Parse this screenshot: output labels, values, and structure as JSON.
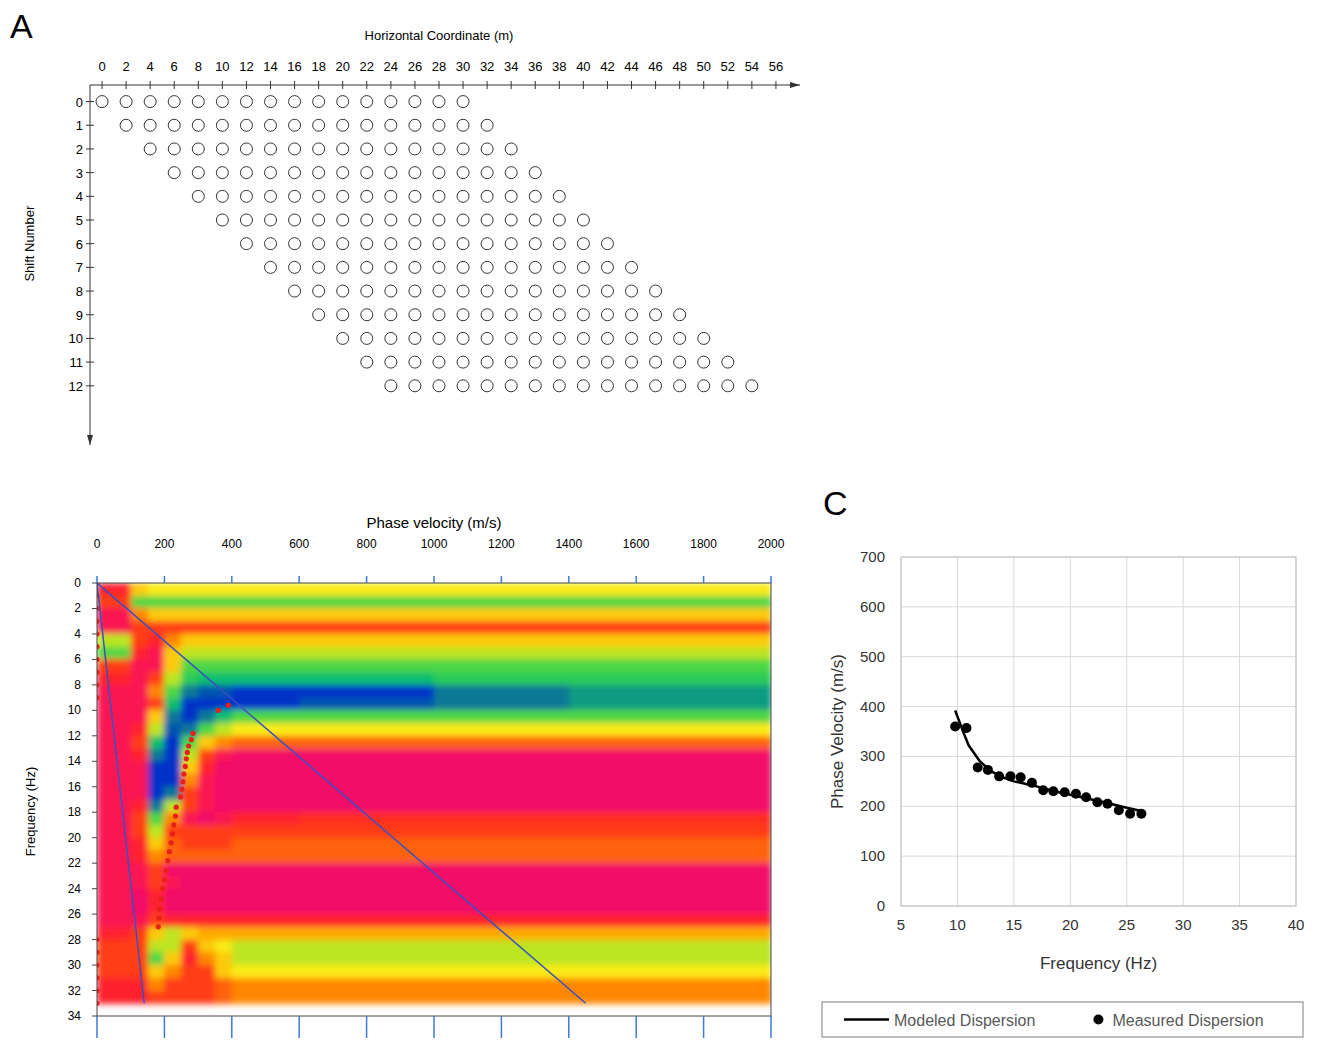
{
  "chart_data": [
    {
      "type": "scatter",
      "panel_label": "A",
      "xlabel": "Horizontal Coordinate (m)",
      "ylabel": "Shift Number",
      "xlim": [
        -1,
        58
      ],
      "ylim": [
        14.5,
        -0.7
      ],
      "xticks": [
        0,
        2,
        4,
        6,
        8,
        10,
        12,
        14,
        16,
        18,
        20,
        22,
        24,
        26,
        28,
        30,
        32,
        34,
        36,
        38,
        40,
        42,
        44,
        46,
        48,
        50,
        52,
        54,
        56
      ],
      "yticks": [
        0,
        1,
        2,
        3,
        4,
        5,
        6,
        7,
        8,
        9,
        10,
        11,
        12
      ],
      "marker": "circle",
      "rows": [
        {
          "shift": 0,
          "x": [
            0,
            2,
            4,
            6,
            8,
            10,
            12,
            14,
            16,
            18,
            20,
            22,
            24,
            26,
            28,
            30
          ]
        },
        {
          "shift": 1,
          "x": [
            2,
            4,
            6,
            8,
            10,
            12,
            14,
            16,
            18,
            20,
            22,
            24,
            26,
            28,
            30,
            32
          ]
        },
        {
          "shift": 2,
          "x": [
            4,
            6,
            8,
            10,
            12,
            14,
            16,
            18,
            20,
            22,
            24,
            26,
            28,
            30,
            32,
            34
          ]
        },
        {
          "shift": 3,
          "x": [
            6,
            8,
            10,
            12,
            14,
            16,
            18,
            20,
            22,
            24,
            26,
            28,
            30,
            32,
            34,
            36
          ]
        },
        {
          "shift": 4,
          "x": [
            8,
            10,
            12,
            14,
            16,
            18,
            20,
            22,
            24,
            26,
            28,
            30,
            32,
            34,
            36,
            38
          ]
        },
        {
          "shift": 5,
          "x": [
            10,
            12,
            14,
            16,
            18,
            20,
            22,
            24,
            26,
            28,
            30,
            32,
            34,
            36,
            38,
            40
          ]
        },
        {
          "shift": 6,
          "x": [
            12,
            14,
            16,
            18,
            20,
            22,
            24,
            26,
            28,
            30,
            32,
            34,
            36,
            38,
            40,
            42
          ]
        },
        {
          "shift": 7,
          "x": [
            14,
            16,
            18,
            20,
            22,
            24,
            26,
            28,
            30,
            32,
            34,
            36,
            38,
            40,
            42,
            44
          ]
        },
        {
          "shift": 8,
          "x": [
            16,
            18,
            20,
            22,
            24,
            26,
            28,
            30,
            32,
            34,
            36,
            38,
            40,
            42,
            44,
            46
          ]
        },
        {
          "shift": 9,
          "x": [
            18,
            20,
            22,
            24,
            26,
            28,
            30,
            32,
            34,
            36,
            38,
            40,
            42,
            44,
            46,
            48
          ]
        },
        {
          "shift": 10,
          "x": [
            20,
            22,
            24,
            26,
            28,
            30,
            32,
            34,
            36,
            38,
            40,
            42,
            44,
            46,
            48,
            50
          ]
        },
        {
          "shift": 11,
          "x": [
            22,
            24,
            26,
            28,
            30,
            32,
            34,
            36,
            38,
            40,
            42,
            44,
            46,
            48,
            50,
            52
          ]
        },
        {
          "shift": 12,
          "x": [
            24,
            26,
            28,
            30,
            32,
            34,
            36,
            38,
            40,
            42,
            44,
            46,
            48,
            50,
            52,
            54
          ]
        }
      ]
    },
    {
      "type": "heatmap",
      "xlabel": "Phase velocity (m/s)",
      "ylabel": "Frequency (Hz)",
      "xlim": [
        0,
        2000
      ],
      "ylim": [
        34,
        0
      ],
      "xticks": [
        0,
        200,
        400,
        600,
        800,
        1000,
        1200,
        1400,
        1600,
        1800,
        2000
      ],
      "yticks": [
        0,
        2,
        4,
        6,
        8,
        10,
        12,
        14,
        16,
        18,
        20,
        22,
        24,
        26,
        28,
        30,
        32,
        34
      ],
      "x_edges": [
        0,
        100,
        150,
        200,
        250,
        300,
        350,
        400,
        600,
        1000,
        1400,
        2000
      ],
      "y_edges": [
        0,
        1,
        2,
        3,
        4,
        5,
        6,
        7,
        8,
        9,
        10,
        11,
        12,
        13,
        14,
        15,
        16,
        17,
        18,
        19,
        20,
        21,
        22,
        23,
        24,
        25,
        26,
        27,
        28,
        29,
        30,
        31,
        32,
        33
      ],
      "color_range": [
        0,
        1
      ],
      "cells": [
        [
          0.2,
          0.5,
          0.55,
          0.55,
          0.55,
          0.55,
          0.55,
          0.55,
          0.55,
          0.55,
          0.55
        ],
        [
          0.3,
          0.7,
          0.7,
          0.7,
          0.7,
          0.7,
          0.7,
          0.7,
          0.7,
          0.7,
          0.7
        ],
        [
          0.1,
          0.4,
          0.5,
          0.5,
          0.5,
          0.5,
          0.5,
          0.5,
          0.5,
          0.5,
          0.5
        ],
        [
          0.1,
          0.3,
          0.3,
          0.3,
          0.3,
          0.3,
          0.3,
          0.3,
          0.3,
          0.3,
          0.3
        ],
        [
          0.6,
          0.3,
          0.2,
          0.4,
          0.5,
          0.5,
          0.5,
          0.5,
          0.5,
          0.5,
          0.5
        ],
        [
          0.7,
          0.2,
          0.1,
          0.5,
          0.6,
          0.6,
          0.6,
          0.6,
          0.6,
          0.6,
          0.6
        ],
        [
          0.3,
          0.1,
          0.1,
          0.5,
          0.7,
          0.7,
          0.7,
          0.7,
          0.7,
          0.7,
          0.7
        ],
        [
          0.2,
          0.1,
          0.3,
          0.6,
          0.75,
          0.8,
          0.8,
          0.8,
          0.8,
          0.75,
          0.75
        ],
        [
          0.1,
          0.1,
          0.4,
          0.7,
          0.9,
          0.95,
          0.95,
          1.0,
          1.0,
          0.9,
          0.85
        ],
        [
          0.1,
          0.1,
          0.3,
          0.8,
          1.0,
          1.0,
          1.0,
          1.0,
          0.95,
          0.9,
          0.85
        ],
        [
          0.1,
          0.1,
          0.5,
          0.9,
          1.0,
          0.9,
          0.8,
          0.7,
          0.7,
          0.7,
          0.7
        ],
        [
          0.1,
          0.2,
          0.6,
          0.95,
          0.9,
          0.7,
          0.6,
          0.55,
          0.55,
          0.55,
          0.55
        ],
        [
          0.1,
          0.3,
          0.8,
          1.0,
          0.7,
          0.5,
          0.4,
          0.35,
          0.35,
          0.35,
          0.35
        ],
        [
          0.1,
          0.2,
          0.9,
          1.0,
          0.6,
          0.3,
          0.1,
          0.05,
          0.05,
          0.05,
          0.05
        ],
        [
          0.1,
          0.1,
          1.0,
          1.0,
          0.5,
          0.2,
          0.05,
          0.05,
          0.05,
          0.05,
          0.05
        ],
        [
          0.1,
          0.1,
          1.0,
          1.0,
          0.4,
          0.1,
          0.05,
          0.05,
          0.05,
          0.05,
          0.05
        ],
        [
          0.1,
          0.1,
          1.0,
          0.9,
          0.3,
          0.1,
          0.05,
          0.05,
          0.05,
          0.05,
          0.05
        ],
        [
          0.1,
          0.2,
          0.9,
          0.6,
          0.3,
          0.1,
          0.05,
          0.05,
          0.05,
          0.05,
          0.05
        ],
        [
          0.1,
          0.3,
          0.7,
          0.4,
          0.1,
          0.05,
          0.1,
          0.2,
          0.25,
          0.25,
          0.25
        ],
        [
          0.1,
          0.3,
          0.6,
          0.3,
          0.3,
          0.3,
          0.3,
          0.3,
          0.3,
          0.3,
          0.3
        ],
        [
          0.1,
          0.2,
          0.5,
          0.35,
          0.3,
          0.3,
          0.3,
          0.35,
          0.35,
          0.35,
          0.35
        ],
        [
          0.1,
          0.2,
          0.4,
          0.35,
          0.35,
          0.35,
          0.35,
          0.35,
          0.35,
          0.35,
          0.35
        ],
        [
          0.1,
          0.1,
          0.3,
          0.05,
          0.05,
          0.05,
          0.05,
          0.05,
          0.05,
          0.05,
          0.05
        ],
        [
          0.1,
          0.1,
          0.3,
          0.1,
          0.05,
          0.05,
          0.05,
          0.05,
          0.05,
          0.05,
          0.05
        ],
        [
          0.1,
          0.05,
          0.2,
          0.05,
          0.05,
          0.05,
          0.05,
          0.05,
          0.05,
          0.05,
          0.05
        ],
        [
          0.1,
          0.05,
          0.2,
          0.05,
          0.05,
          0.05,
          0.05,
          0.05,
          0.05,
          0.05,
          0.05
        ],
        [
          0.1,
          0.1,
          0.3,
          0.2,
          0.2,
          0.2,
          0.2,
          0.2,
          0.2,
          0.2,
          0.2
        ],
        [
          0.2,
          0.3,
          0.5,
          0.6,
          0.5,
          0.45,
          0.45,
          0.45,
          0.45,
          0.45,
          0.45
        ],
        [
          0.3,
          0.3,
          0.6,
          0.6,
          0.3,
          0.5,
          0.55,
          0.6,
          0.6,
          0.6,
          0.6
        ],
        [
          0.3,
          0.3,
          0.7,
          0.5,
          0.2,
          0.4,
          0.5,
          0.6,
          0.6,
          0.6,
          0.6
        ],
        [
          0.3,
          0.3,
          0.5,
          0.4,
          0.3,
          0.3,
          0.5,
          0.55,
          0.55,
          0.55,
          0.55
        ],
        [
          0.2,
          0.2,
          0.4,
          0.3,
          0.3,
          0.3,
          0.35,
          0.4,
          0.4,
          0.4,
          0.4
        ],
        [
          0.2,
          0.2,
          0.3,
          0.3,
          0.3,
          0.3,
          0.35,
          0.4,
          0.4,
          0.4,
          0.4
        ]
      ],
      "series": [
        {
          "type": "scatter",
          "color": "#e8201a",
          "marker": "circle",
          "x": [
            390,
            360,
            285,
            280,
            272,
            268,
            265,
            262,
            258,
            255,
            252,
            248,
            235,
            233,
            228,
            224,
            220,
            215,
            210,
            205,
            200,
            195,
            190,
            186,
            184,
            182
          ],
          "values": [
            9.6,
            10.0,
            11.8,
            12.3,
            12.8,
            13.3,
            13.8,
            14.4,
            15.0,
            15.6,
            16.2,
            16.8,
            17.6,
            18.3,
            19.0,
            19.7,
            20.4,
            21.1,
            21.8,
            22.6,
            23.3,
            24.0,
            24.8,
            25.6,
            26.3,
            27.0
          ]
        },
        {
          "type": "scatter",
          "color": "#e8201a",
          "marker": "circle",
          "x": [
            0,
            0,
            0,
            0,
            0,
            0,
            0,
            0,
            0,
            0,
            0,
            0,
            0,
            0,
            0,
            0
          ],
          "values": [
            0,
            1,
            2,
            3,
            4,
            5,
            6,
            7,
            8,
            9,
            28,
            29,
            30,
            31,
            32,
            33
          ]
        },
        {
          "type": "line",
          "color": "#3a4fc4",
          "line_style": "solid",
          "x": [
            0,
            140
          ],
          "values": [
            0,
            33
          ]
        },
        {
          "type": "line",
          "color": "#3a4fc4",
          "line_style": "solid",
          "x": [
            0,
            1450
          ],
          "values": [
            0,
            33
          ]
        }
      ]
    },
    {
      "type": "line",
      "panel_label": "C",
      "xlabel": "Frequency (Hz)",
      "ylabel": "Phase Velocity (m/s)",
      "xlim": [
        5,
        40
      ],
      "ylim": [
        0,
        700
      ],
      "xticks": [
        5,
        10,
        15,
        20,
        25,
        30,
        35,
        40
      ],
      "yticks": [
        0,
        100,
        200,
        300,
        400,
        500,
        600,
        700
      ],
      "grid": true,
      "legend": "bottom",
      "series": [
        {
          "name": "Modeled Dispersion",
          "type": "line",
          "color": "#000000",
          "line_style": "solid",
          "x": [
            9.8,
            10.5,
            11,
            12,
            13,
            14,
            15,
            17,
            19,
            21,
            23,
            25,
            26.4
          ],
          "values": [
            392,
            350,
            322,
            290,
            270,
            258,
            250,
            240,
            228,
            218,
            208,
            197,
            190
          ]
        },
        {
          "name": "Measured Dispersion",
          "type": "scatter",
          "color": "#000000",
          "marker": "circle",
          "x": [
            9.8,
            10.8,
            11.8,
            12.7,
            13.7,
            14.7,
            15.6,
            16.6,
            17.6,
            18.5,
            19.5,
            20.5,
            21.4,
            22.4,
            23.3,
            24.3,
            25.3,
            26.3
          ],
          "values": [
            360,
            357,
            278,
            273,
            260,
            260,
            258,
            247,
            232,
            230,
            228,
            225,
            218,
            208,
            205,
            192,
            185,
            185
          ]
        }
      ]
    }
  ]
}
